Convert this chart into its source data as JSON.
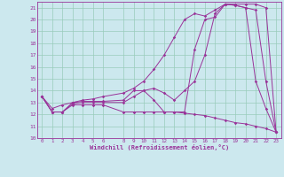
{
  "xlabel": "Windchill (Refroidissement éolien,°C)",
  "background_color": "#cce8ee",
  "grid_color": "#99ccbb",
  "line_color": "#993399",
  "xlim": [
    -0.5,
    23.5
  ],
  "ylim": [
    10,
    21.5
  ],
  "xticks": [
    0,
    1,
    2,
    3,
    4,
    5,
    6,
    8,
    9,
    10,
    11,
    12,
    13,
    14,
    15,
    16,
    17,
    18,
    19,
    20,
    21,
    22,
    23
  ],
  "yticks": [
    10,
    11,
    12,
    13,
    14,
    15,
    16,
    17,
    18,
    19,
    20,
    21
  ],
  "line1_x": [
    0,
    1,
    2,
    3,
    4,
    5,
    6,
    8,
    9,
    10,
    11,
    12,
    13,
    14,
    15,
    16,
    17,
    18,
    19,
    20,
    21,
    22,
    23
  ],
  "line1_y": [
    13.5,
    12.2,
    12.2,
    12.8,
    12.8,
    12.8,
    12.8,
    12.2,
    12.2,
    12.2,
    12.2,
    12.2,
    12.2,
    12.1,
    12.0,
    11.9,
    11.7,
    11.5,
    11.3,
    11.2,
    11.0,
    10.8,
    10.5
  ],
  "line2_x": [
    0,
    1,
    2,
    3,
    4,
    5,
    6,
    8,
    9,
    10,
    11,
    12,
    13,
    14,
    15,
    16,
    17,
    18,
    19,
    20,
    21,
    22,
    23
  ],
  "line2_y": [
    13.5,
    12.2,
    12.2,
    13.0,
    13.1,
    13.1,
    13.1,
    13.2,
    14.0,
    14.0,
    13.2,
    12.2,
    12.2,
    12.2,
    17.5,
    20.0,
    20.2,
    21.3,
    21.2,
    21.0,
    14.8,
    12.5,
    10.5
  ],
  "line3_x": [
    0,
    1,
    2,
    3,
    4,
    5,
    6,
    8,
    9,
    10,
    11,
    12,
    13,
    14,
    15,
    16,
    17,
    18,
    19,
    20,
    21,
    22,
    23
  ],
  "line3_y": [
    13.5,
    12.2,
    12.2,
    12.9,
    13.0,
    13.0,
    13.0,
    13.0,
    13.5,
    14.0,
    14.2,
    13.8,
    13.2,
    14.0,
    14.8,
    17.0,
    20.5,
    21.3,
    21.2,
    21.0,
    20.8,
    14.8,
    10.5
  ],
  "line4_x": [
    0,
    1,
    2,
    3,
    4,
    5,
    6,
    8,
    9,
    10,
    11,
    12,
    13,
    14,
    15,
    16,
    17,
    18,
    19,
    20,
    21,
    22,
    23
  ],
  "line4_y": [
    13.5,
    12.5,
    12.8,
    13.0,
    13.2,
    13.3,
    13.5,
    13.8,
    14.2,
    14.8,
    15.8,
    17.0,
    18.5,
    20.0,
    20.5,
    20.3,
    20.8,
    21.3,
    21.3,
    21.3,
    21.3,
    21.0,
    10.5
  ]
}
